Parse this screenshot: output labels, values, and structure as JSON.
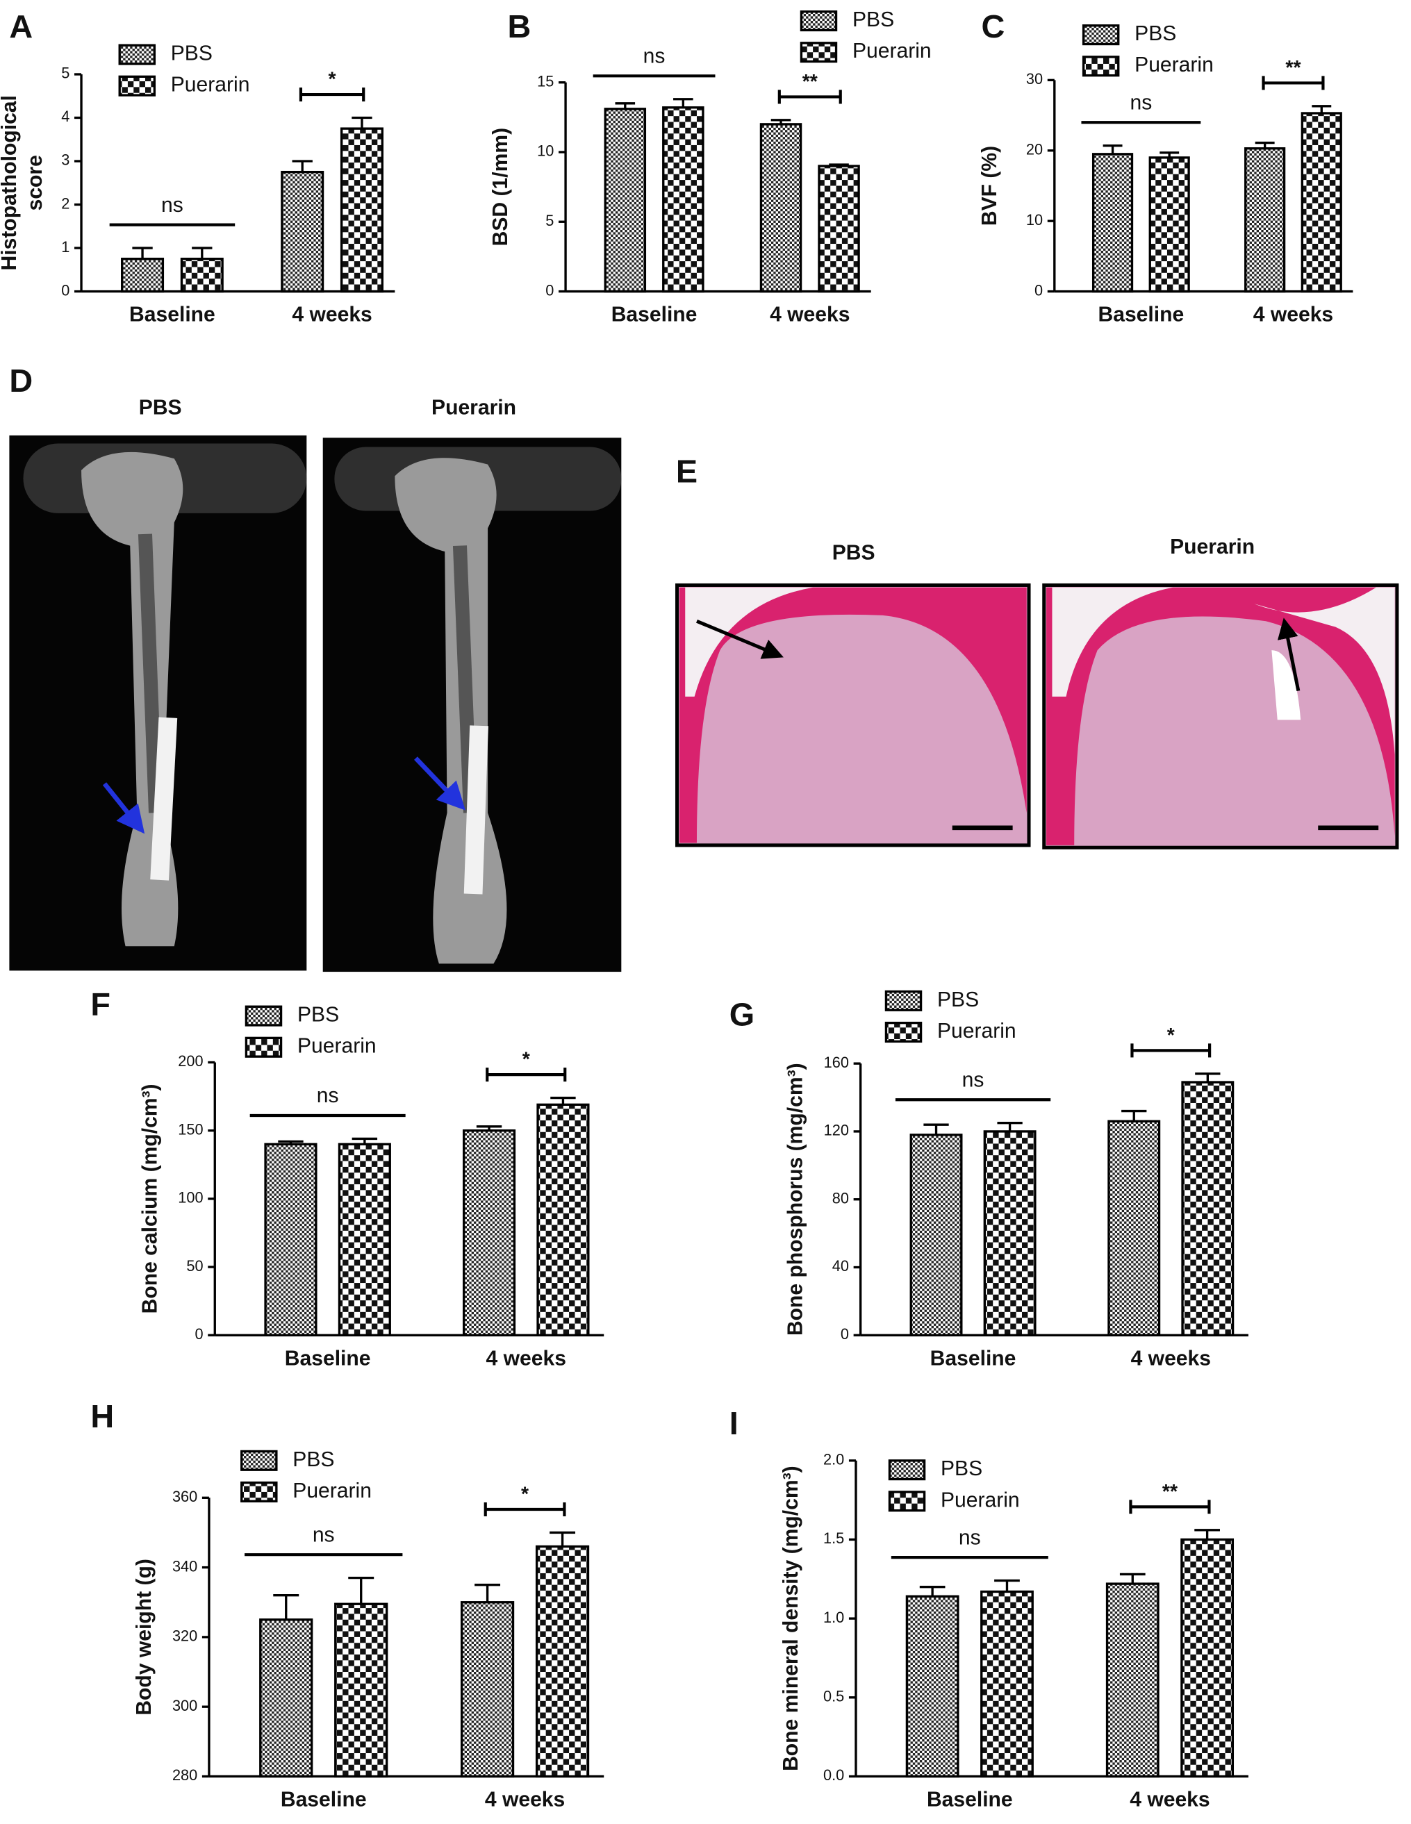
{
  "chart_data": [
    {
      "type": "bar",
      "panel": "A",
      "y_label": [
        "Histopathological",
        "score"
      ],
      "categories": [
        "Baseline",
        "4 weeks"
      ],
      "series": [
        {
          "name": "PBS",
          "color": "#000000",
          "values": [
            0.75,
            2.75
          ],
          "errors": [
            0.25,
            0.25
          ]
        },
        {
          "name": "Puerarin",
          "color": "#000000",
          "values": [
            0.75,
            3.75
          ],
          "errors": [
            0.25,
            0.25
          ]
        }
      ],
      "ylim": [
        0,
        5
      ],
      "yticks": [
        0,
        1,
        2,
        3,
        4,
        5
      ],
      "annotations": [
        "ns",
        "*"
      ]
    },
    {
      "type": "bar",
      "panel": "B",
      "y_label": "BSD (1/mm)",
      "categories": [
        "Baseline",
        "4 weeks"
      ],
      "series": [
        {
          "name": "PBS",
          "color": "#000000",
          "values": [
            13.1,
            12.0
          ],
          "errors": [
            0.4,
            0.3
          ]
        },
        {
          "name": "Puerarin",
          "color": "#000000",
          "values": [
            13.2,
            9.0
          ],
          "errors": [
            0.6,
            0.1
          ]
        }
      ],
      "ylim": [
        0,
        15
      ],
      "yticks": [
        0,
        5,
        10,
        15
      ],
      "annotations": [
        "ns",
        "**"
      ]
    },
    {
      "type": "bar",
      "panel": "C",
      "y_label": "BVF (%)",
      "categories": [
        "Baseline",
        "4 weeks"
      ],
      "series": [
        {
          "name": "PBS",
          "color": "#000000",
          "values": [
            19.5,
            20.3
          ],
          "errors": [
            1.2,
            0.8
          ]
        },
        {
          "name": "Puerarin",
          "color": "#000000",
          "values": [
            19.0,
            25.3
          ],
          "errors": [
            0.7,
            1.0
          ]
        }
      ],
      "ylim": [
        0,
        30
      ],
      "yticks": [
        0,
        10,
        20,
        30
      ],
      "annotations": [
        "ns",
        "**"
      ]
    },
    {
      "type": "bar",
      "panel": "F",
      "y_label": "Bone calcium  (mg/cm³)",
      "categories": [
        "Baseline",
        "4 weeks"
      ],
      "series": [
        {
          "name": "PBS",
          "color": "#000000",
          "values": [
            140,
            150
          ],
          "errors": [
            2,
            3
          ]
        },
        {
          "name": "Puerarin",
          "color": "#000000",
          "values": [
            140,
            169
          ],
          "errors": [
            4,
            5
          ]
        }
      ],
      "ylim": [
        0,
        200
      ],
      "yticks": [
        0,
        50,
        100,
        150,
        200
      ],
      "annotations": [
        "ns",
        "*"
      ]
    },
    {
      "type": "bar",
      "panel": "G",
      "y_label": "Bone phosphorus  (mg/cm³)",
      "categories": [
        "Baseline",
        "4 weeks"
      ],
      "series": [
        {
          "name": "PBS",
          "color": "#000000",
          "values": [
            118,
            126
          ],
          "errors": [
            6,
            6
          ]
        },
        {
          "name": "Puerarin",
          "color": "#000000",
          "values": [
            120,
            149
          ],
          "errors": [
            5,
            5
          ]
        }
      ],
      "ylim": [
        0,
        160
      ],
      "yticks": [
        0,
        40,
        80,
        120,
        160
      ],
      "annotations": [
        "ns",
        "*"
      ]
    },
    {
      "type": "bar",
      "panel": "H",
      "y_label": "Body weight  (g)",
      "categories": [
        "Baseline",
        "4 weeks"
      ],
      "series": [
        {
          "name": "PBS",
          "color": "#000000",
          "values": [
            325,
            330
          ],
          "errors": [
            7,
            5
          ]
        },
        {
          "name": "Puerarin",
          "color": "#000000",
          "values": [
            329.5,
            346
          ],
          "errors": [
            7.5,
            4
          ]
        }
      ],
      "ylim": [
        280,
        360
      ],
      "yticks": [
        280,
        300,
        320,
        340,
        360
      ],
      "annotations": [
        "ns",
        "*"
      ]
    },
    {
      "type": "bar",
      "panel": "I",
      "y_label": "Bone mineral density  (mg/cm³)",
      "categories": [
        "Baseline",
        "4 weeks"
      ],
      "series": [
        {
          "name": "PBS",
          "color": "#000000",
          "values": [
            1.14,
            1.22
          ],
          "errors": [
            0.06,
            0.06
          ]
        },
        {
          "name": "Puerarin",
          "color": "#000000",
          "values": [
            1.17,
            1.5
          ],
          "errors": [
            0.07,
            0.06
          ]
        }
      ],
      "ylim": [
        0,
        2
      ],
      "yticks": [
        {
          "value": 0,
          "label": "0.0"
        },
        0.5,
        {
          "value": 1,
          "label": "1.0"
        },
        1.5,
        {
          "value": 2,
          "label": "2.0"
        }
      ],
      "annotations": [
        "ns",
        "**"
      ]
    }
  ],
  "images": [
    {
      "panel": "D",
      "labels": [
        "PBS",
        "Puerarin"
      ]
    },
    {
      "panel": "E",
      "labels": [
        "PBS",
        "Puerarin"
      ]
    }
  ]
}
